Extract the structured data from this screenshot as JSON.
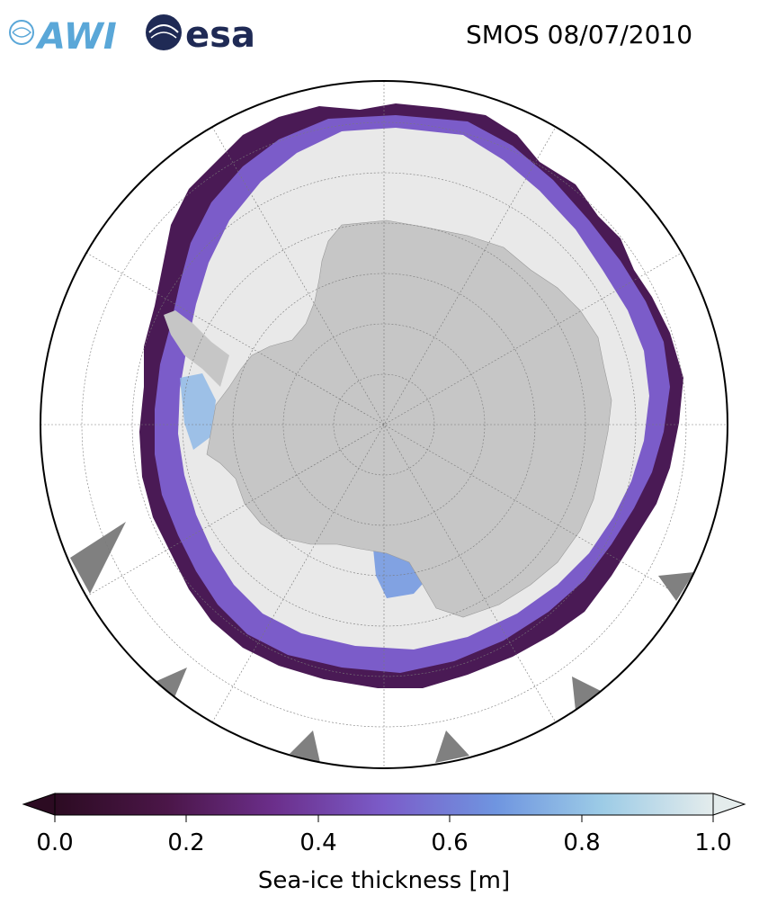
{
  "title": "SMOS 08/07/2010",
  "logos": {
    "awi": "AWI",
    "esa": "esa"
  },
  "colors": {
    "land": "#c6c6c6",
    "thick_ice": "#e9e9e9",
    "ice_edge": "#3b0f3f",
    "ocean": "#ffffff",
    "no_data": "#808080",
    "awi_blue": "#5aa7d8",
    "esa_navy": "#1f2a55"
  },
  "colorbar": {
    "label": "Sea-ice thickness [m]",
    "ticks": [
      "0.0",
      "0.2",
      "0.4",
      "0.6",
      "0.8",
      "1.0"
    ],
    "range": [
      0.0,
      1.0
    ],
    "stops": [
      "#2c0b22",
      "#4b1648",
      "#6b2e8a",
      "#7b5cc9",
      "#6f95e0",
      "#9ccbe6",
      "#e4ecec"
    ],
    "extend": "both"
  }
}
